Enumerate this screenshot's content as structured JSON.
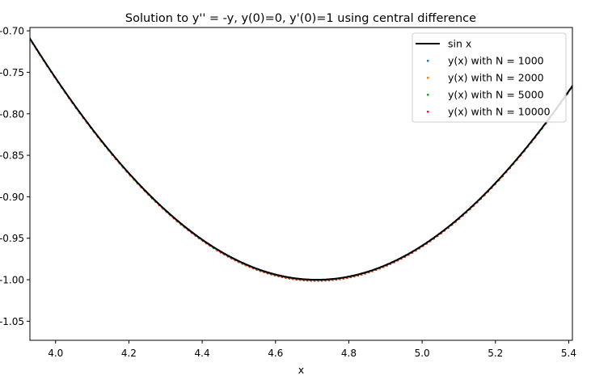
{
  "chart_data": {
    "type": "scatter",
    "title": "Solution to y'' = -y, y(0)=0, y'(0)=1 using central difference",
    "xlabel": "x",
    "ylabel": "",
    "xlim": [
      3.93,
      5.41
    ],
    "ylim": [
      -1.073,
      -0.696
    ],
    "x_ticks": [
      4.0,
      4.2,
      4.4,
      4.6,
      4.8,
      5.0,
      5.2,
      5.4
    ],
    "x_tick_labels": [
      "4.0",
      "4.2",
      "4.4",
      "4.6",
      "4.8",
      "5.0",
      "5.2",
      "5.4"
    ],
    "y_ticks": [
      -0.7,
      -0.75,
      -0.8,
      -0.85,
      -0.9,
      -0.95,
      -1.0,
      -1.05
    ],
    "y_tick_labels": [
      "-0.70",
      "-0.75",
      "-0.80",
      "-0.85",
      "-0.90",
      "-0.95",
      "-1.00",
      "-1.05"
    ],
    "grid": false,
    "legend_position": "top-right",
    "reference_line": {
      "name": "sin x",
      "function": "sin",
      "color": "#000000"
    },
    "series": [
      {
        "name": "y(x) with N = 1000",
        "N": 1000,
        "color": "#1f77b4"
      },
      {
        "name": "y(x) with N = 2000",
        "N": 2000,
        "color": "#ff7f0e"
      },
      {
        "name": "y(x) with N = 5000",
        "N": 5000,
        "color": "#2ca02c"
      },
      {
        "name": "y(x) with N = 10000",
        "N": 10000,
        "color": "#d62728"
      }
    ]
  }
}
